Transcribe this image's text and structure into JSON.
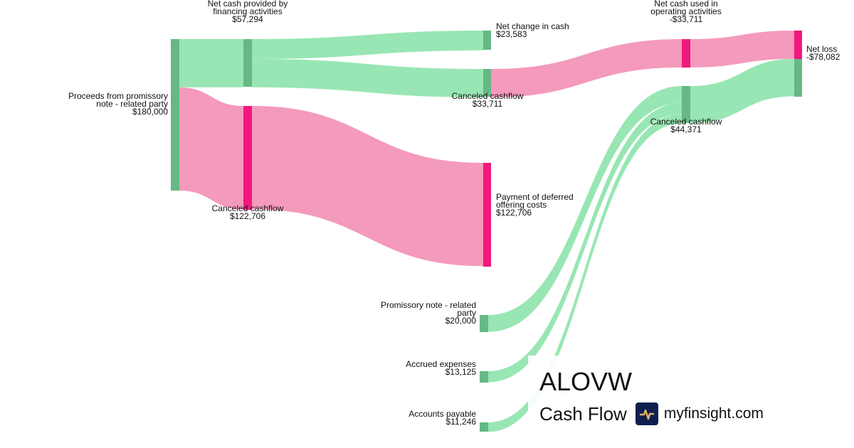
{
  "colors": {
    "positive_node": "#66b884",
    "positive_link": "#98e6b3",
    "negative_node": "#f0197d",
    "negative_link": "#f49abc"
  },
  "nodes": [
    {
      "id": "proceeds",
      "label": [
        "Proceeds from promissory",
        "note - related party"
      ],
      "value": "$180,000",
      "sign": "positive"
    },
    {
      "id": "financing",
      "label": [
        "Net cash provided by",
        "financing activities"
      ],
      "value": "$57,294",
      "sign": "positive"
    },
    {
      "id": "canceled1",
      "label": [
        "Canceled cashflow"
      ],
      "value": "$122,706",
      "sign": "negative"
    },
    {
      "id": "netchange",
      "label": [
        "Net change in cash"
      ],
      "value": "$23,583",
      "sign": "positive"
    },
    {
      "id": "canceled2",
      "label": [
        "Canceled cashflow"
      ],
      "value": "$33,711",
      "sign": "positive"
    },
    {
      "id": "payment",
      "label": [
        "Payment of deferred",
        "offering costs"
      ],
      "value": "$122,706",
      "sign": "negative"
    },
    {
      "id": "operating",
      "label": [
        "Net cash used in",
        "operating activities"
      ],
      "value": "-$33,711",
      "sign": "negative"
    },
    {
      "id": "canceled3",
      "label": [
        "Canceled cashflow"
      ],
      "value": "$44,371",
      "sign": "positive"
    },
    {
      "id": "netloss",
      "label": [
        "Net loss"
      ],
      "value": "-$78,082",
      "sign": "negative"
    },
    {
      "id": "promissory",
      "label": [
        "Promissory note - related",
        "party"
      ],
      "value": "$20,000",
      "sign": "positive"
    },
    {
      "id": "accrued",
      "label": [
        "Accrued expenses"
      ],
      "value": "$13,125",
      "sign": "positive"
    },
    {
      "id": "payable",
      "label": [
        "Accounts payable"
      ],
      "value": "$11,246",
      "sign": "positive"
    }
  ],
  "links": [
    {
      "source": "proceeds",
      "target": "financing",
      "value": 57294,
      "sign": "positive"
    },
    {
      "source": "proceeds",
      "target": "canceled1",
      "value": 122706,
      "sign": "negative"
    },
    {
      "source": "financing",
      "target": "netchange",
      "value": 23583,
      "sign": "positive"
    },
    {
      "source": "financing",
      "target": "canceled2",
      "value": 33711,
      "sign": "positive"
    },
    {
      "source": "canceled1",
      "target": "payment",
      "value": 122706,
      "sign": "negative"
    },
    {
      "source": "canceled2",
      "target": "operating",
      "value": 33711,
      "sign": "negative"
    },
    {
      "source": "operating",
      "target": "netloss",
      "value": 33711,
      "sign": "negative"
    },
    {
      "source": "promissory",
      "target": "canceled3",
      "value": 20000,
      "sign": "positive"
    },
    {
      "source": "accrued",
      "target": "canceled3",
      "value": 13125,
      "sign": "positive"
    },
    {
      "source": "payable",
      "target": "canceled3",
      "value": 11246,
      "sign": "positive"
    },
    {
      "source": "canceled3",
      "target": "netloss",
      "value": 44371,
      "sign": "positive"
    }
  ],
  "branding": {
    "ticker": "ALOVW",
    "subtitle": "Cash Flow",
    "site": "myfinsight.com",
    "logo_icon": "pulse-icon"
  }
}
